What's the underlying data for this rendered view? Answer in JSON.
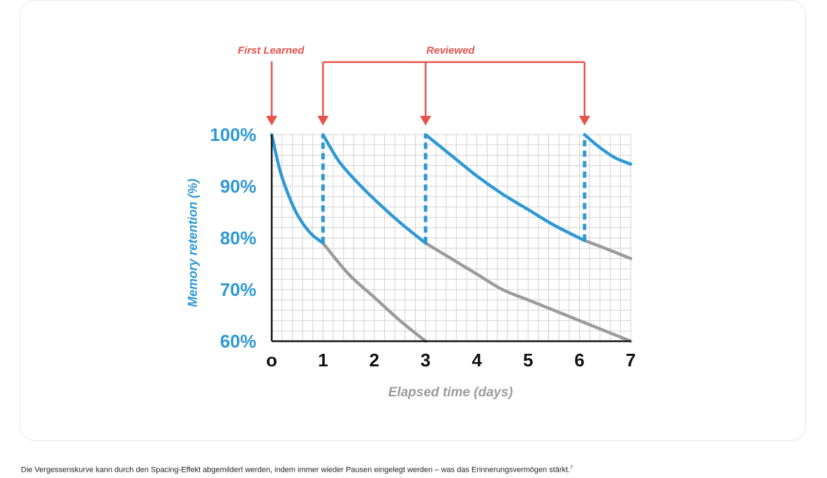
{
  "chart_data": {
    "type": "line",
    "xlabel": "Elapsed time (days)",
    "ylabel": "Memory retention (%)",
    "xlim": [
      0,
      7
    ],
    "ylim": [
      60,
      100
    ],
    "x_ticks": [
      "o",
      "1",
      "2",
      "3",
      "4",
      "5",
      "6",
      "7"
    ],
    "y_ticks": [
      "100%",
      "90%",
      "80%",
      "70%",
      "60%"
    ],
    "annotations": {
      "first": "First Learned",
      "review": "Reviewed",
      "first_at": 0,
      "review_at": [
        1,
        3,
        6.1
      ]
    },
    "series": [
      {
        "role": "retention",
        "color": "#2e98d5",
        "points": [
          [
            0,
            100
          ],
          [
            0.15,
            93.5
          ],
          [
            0.3,
            89
          ],
          [
            0.5,
            84.5
          ],
          [
            0.75,
            81
          ],
          [
            1,
            79
          ]
        ]
      },
      {
        "role": "retention",
        "color": "#2e98d5",
        "points": [
          [
            1,
            100
          ],
          [
            1.3,
            95
          ],
          [
            1.6,
            91.5
          ],
          [
            2,
            87.5
          ],
          [
            2.5,
            83
          ],
          [
            3,
            79
          ]
        ]
      },
      {
        "role": "retention",
        "color": "#2e98d5",
        "points": [
          [
            3,
            100
          ],
          [
            3.5,
            96
          ],
          [
            4,
            92
          ],
          [
            4.5,
            88.5
          ],
          [
            5,
            85.5
          ],
          [
            5.5,
            82.5
          ],
          [
            6.1,
            79.5
          ]
        ]
      },
      {
        "role": "retention",
        "color": "#2e98d5",
        "points": [
          [
            6.1,
            100
          ],
          [
            6.4,
            97.5
          ],
          [
            6.7,
            95.5
          ],
          [
            7,
            94.3
          ]
        ]
      },
      {
        "role": "decay",
        "color": "#9b9b9b",
        "points": [
          [
            1,
            79
          ],
          [
            1.5,
            73
          ],
          [
            2,
            68.5
          ],
          [
            2.5,
            64
          ],
          [
            3,
            60
          ]
        ]
      },
      {
        "role": "decay",
        "color": "#9b9b9b",
        "points": [
          [
            3,
            79
          ],
          [
            3.5,
            76
          ],
          [
            4,
            73
          ],
          [
            4.5,
            70
          ],
          [
            5,
            68
          ],
          [
            5.5,
            66
          ],
          [
            6,
            64
          ],
          [
            7,
            60
          ]
        ]
      },
      {
        "role": "decay",
        "color": "#9b9b9b",
        "points": [
          [
            6.1,
            79.5
          ],
          [
            6.5,
            78
          ],
          [
            7,
            76
          ]
        ]
      }
    ],
    "review_markers": [
      {
        "x": 1,
        "from": 79,
        "to": 100
      },
      {
        "x": 3,
        "from": 79,
        "to": 100
      },
      {
        "x": 6.1,
        "from": 79.5,
        "to": 100
      }
    ],
    "colors": {
      "blue": "#2e98d5",
      "grey": "#9b9b9b",
      "red": "#e5534b",
      "grid": "#d2d2d2",
      "axis": "#111111"
    },
    "grid": true,
    "legend": "none"
  },
  "caption": {
    "text": "Die Vergessenskurve kann durch den Spacing-Effekt abgemildert werden, indem immer wieder Pausen eingelegt werden – was das Erinnerungsvermögen stärkt.",
    "footnote": "7"
  }
}
